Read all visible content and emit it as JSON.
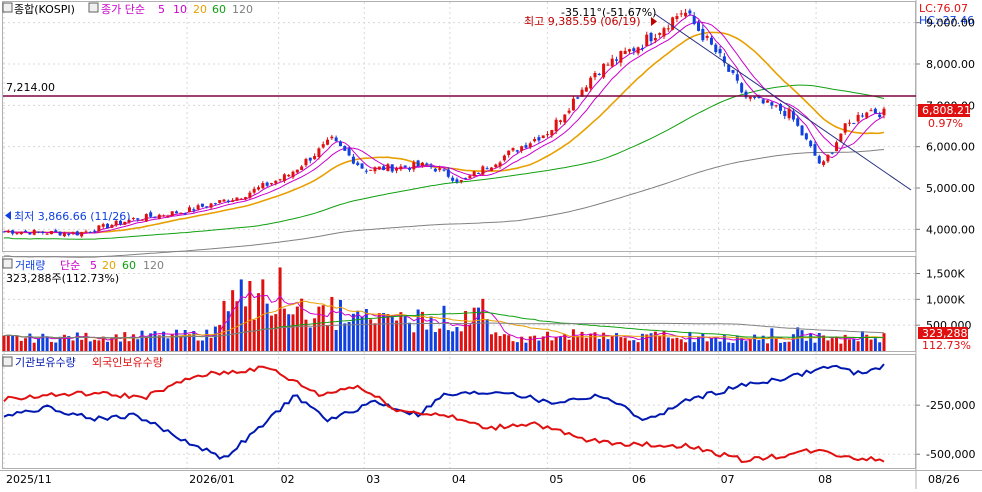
{
  "header": {
    "index_name": "종합(KOSPI)",
    "ma_title": "종가 단순",
    "ma_periods": [
      "5",
      "10",
      "20",
      "60",
      "120"
    ]
  },
  "colors": {
    "up": "#e01010",
    "down": "#1040e0",
    "ma5": "#cc00cc",
    "ma10": "#cc00cc",
    "ma20": "#e8a000",
    "ma60": "#10a010",
    "ma120": "#808080",
    "hline": "#800040",
    "trendline": "#283080",
    "inst": "#0018b0",
    "foreign": "#e01010",
    "grid": "#d8d8d8",
    "bg": "#ffffff"
  },
  "price_panel": {
    "lc_label": "LC:76.07",
    "hc_label": "HC:-27.46",
    "high_label": "최고 9,385.59 (06/19)",
    "low_label": "최저 3,866.66 (11/26)",
    "trend_label": "-35.11°(-51.67%)",
    "hline_label": "7,214.00",
    "current_price": "6,808.21",
    "current_change": "0.97%",
    "y_ticks": [
      "9,000.00",
      "8,000.00",
      "7,000.00",
      "6,000.00",
      "5,000.00",
      "4,000.00"
    ]
  },
  "volume_panel": {
    "title": "거래량",
    "ma_title": "단순",
    "ma_periods": [
      "5",
      "20",
      "60",
      "120"
    ],
    "info": "323,288주(112.73%)",
    "current_value": "323,288",
    "current_pct": "112.73%",
    "y_ticks": [
      "1,500K",
      "1,000K",
      "500,000"
    ]
  },
  "flow_panel": {
    "series1": "기관보유수량",
    "series2": "외국인보유수량",
    "y_ticks": [
      "-250,000",
      "-500,000"
    ]
  },
  "x_axis": {
    "labels": [
      "2025/11",
      "2026/01",
      "02",
      "03",
      "04",
      "05",
      "06",
      "07",
      "08",
      "08/26"
    ]
  },
  "chart_data": {
    "type": "candlestick",
    "title": "종합(KOSPI)",
    "x_range": [
      "2025/11",
      "2026/08/26"
    ],
    "ylim": [
      3500,
      9500
    ],
    "horizontal_line": 7214.0,
    "high": {
      "value": 9385.59,
      "date": "06/19"
    },
    "low": {
      "value": 3866.66,
      "date": "11/26"
    },
    "last_close": 6808.21,
    "last_change_pct": 0.97,
    "trend_line": {
      "angle": "-35.11°",
      "change": "-51.67%"
    },
    "close_path": [
      {
        "date": "2025/11/03",
        "value": 3950
      },
      {
        "date": "2025/11/26",
        "value": 3900
      },
      {
        "date": "2025/12/15",
        "value": 4250
      },
      {
        "date": "2026/01/02",
        "value": 4450
      },
      {
        "date": "2026/01/20",
        "value": 4800
      },
      {
        "date": "2026/02/05",
        "value": 5300
      },
      {
        "date": "2026/02/20",
        "value": 6150
      },
      {
        "date": "2026/03/03",
        "value": 5450
      },
      {
        "date": "2026/03/25",
        "value": 5550
      },
      {
        "date": "2026/04/05",
        "value": 5150
      },
      {
        "date": "2026/04/20",
        "value": 5800
      },
      {
        "date": "2026/05/05",
        "value": 6400
      },
      {
        "date": "2026/05/20",
        "value": 7800
      },
      {
        "date": "2026/06/05",
        "value": 8500
      },
      {
        "date": "2026/06/19",
        "value": 9300
      },
      {
        "date": "2026/07/01",
        "value": 8200
      },
      {
        "date": "2026/07/10",
        "value": 7200
      },
      {
        "date": "2026/07/25",
        "value": 6800
      },
      {
        "date": "2026/08/05",
        "value": 5500
      },
      {
        "date": "2026/08/12",
        "value": 6400
      },
      {
        "date": "2026/08/20",
        "value": 6900
      },
      {
        "date": "2026/08/26",
        "value": 6808
      }
    ],
    "moving_averages": [
      {
        "name": "5",
        "values": [
          3960,
          4200,
          4450,
          4800,
          5250,
          6000,
          5500,
          5500,
          5200,
          5700,
          6300,
          7600,
          8400,
          9100,
          8400,
          7400,
          6900,
          5800,
          6200,
          6800,
          6800
        ]
      },
      {
        "name": "20",
        "values": [
          3900,
          4050,
          4300,
          4550,
          4950,
          5700,
          5650,
          5500,
          5300,
          5400,
          5900,
          6900,
          7800,
          8500,
          8500,
          7900,
          7200,
          6500,
          6400,
          6500,
          6500
        ]
      },
      {
        "name": "60",
        "values": [
          3800,
          3900,
          4050,
          4250,
          4450,
          4800,
          5050,
          5200,
          5250,
          5350,
          5600,
          6100,
          6700,
          7200,
          7600,
          7700,
          7650,
          7500,
          7400,
          7300,
          7300
        ]
      },
      {
        "name": "120",
        "values": [
          3600,
          3700,
          3800,
          3950,
          4100,
          4300,
          4500,
          4650,
          4750,
          4850,
          5050,
          5350,
          5700,
          6050,
          6300,
          6550,
          6700,
          6750,
          6800,
          6850,
          6850
        ]
      }
    ],
    "volume": {
      "ylim": [
        0,
        1800000
      ],
      "last": 323288,
      "last_pct": 112.73,
      "peak_period": "2026/02-03",
      "peak_approx": 1650000
    },
    "holdings": {
      "series": [
        {
          "name": "기관보유수량",
          "start": -300000,
          "low": -520000,
          "end": -70000
        },
        {
          "name": "외국인보유수량",
          "start": -220000,
          "high": -60000,
          "end": -530000
        }
      ]
    }
  }
}
